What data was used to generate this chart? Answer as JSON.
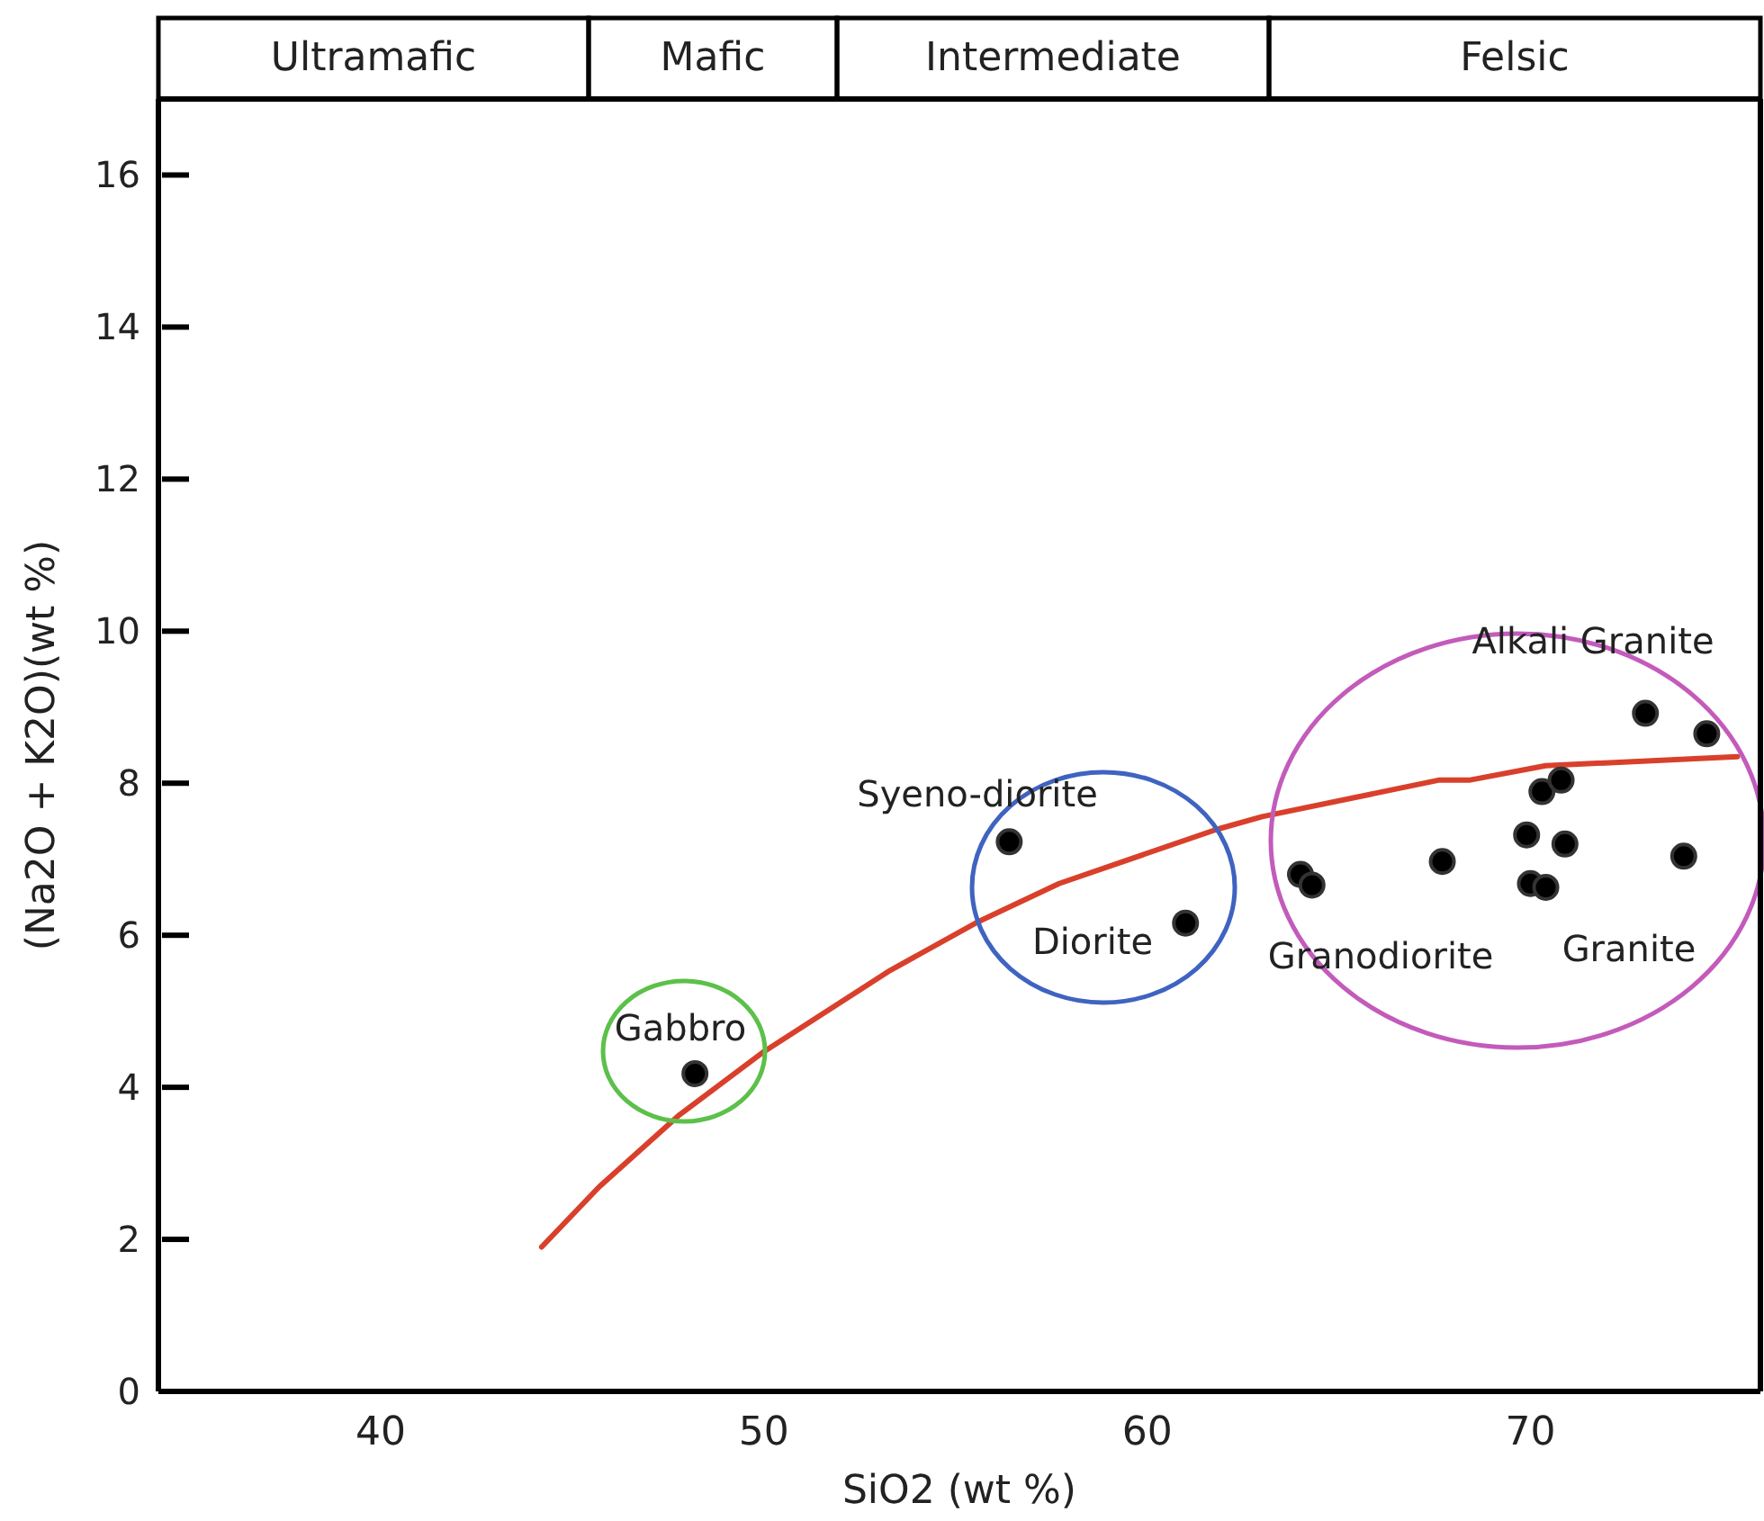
{
  "chart_data": {
    "type": "scatter",
    "xlabel": "SiO2 (wt %)",
    "ylabel": "(Na2O + K2O)(wt %)",
    "xlim": [
      34.2,
      76
    ],
    "xticks": [
      40,
      50,
      60,
      70
    ],
    "ylim": [
      0,
      17
    ],
    "yticks": [
      0,
      2,
      4,
      6,
      8,
      10,
      12,
      14,
      16
    ],
    "marker": "circle",
    "line_style": "solid",
    "grid": false,
    "legend": false,
    "annotations": [
      "Ultramafic",
      "Mafic",
      "Intermediate",
      "Felsic",
      "Gabbro",
      "Syeno-diorite",
      "Diorite",
      "Granodiorite",
      "Granite",
      "Alkali Granite"
    ],
    "series": [
      {
        "color": "#000000",
        "x": [
          48.2,
          56.4,
          61.0,
          64.0,
          64.3,
          67.7,
          69.9,
          70.0,
          70.4,
          70.3,
          70.8,
          70.9,
          73.0,
          74.0,
          74.6
        ],
        "values": [
          4.18,
          7.23,
          6.16,
          6.8,
          6.66,
          6.97,
          7.32,
          6.68,
          6.63,
          7.89,
          8.04,
          7.2,
          8.92,
          7.04,
          8.65
        ]
      },
      {
        "type": "line",
        "marker": "none",
        "color": "#d9402b",
        "x": [
          44.2,
          45.7,
          47.8,
          50.0,
          53.3,
          55.6,
          57.7,
          61.8,
          63.0,
          67.6,
          68.4,
          70.4,
          75.4
        ],
        "values": [
          1.9,
          2.69,
          3.64,
          4.47,
          5.54,
          6.18,
          6.68,
          7.39,
          7.56,
          8.04,
          8.04,
          8.23,
          8.35
        ]
      }
    ]
  }
}
